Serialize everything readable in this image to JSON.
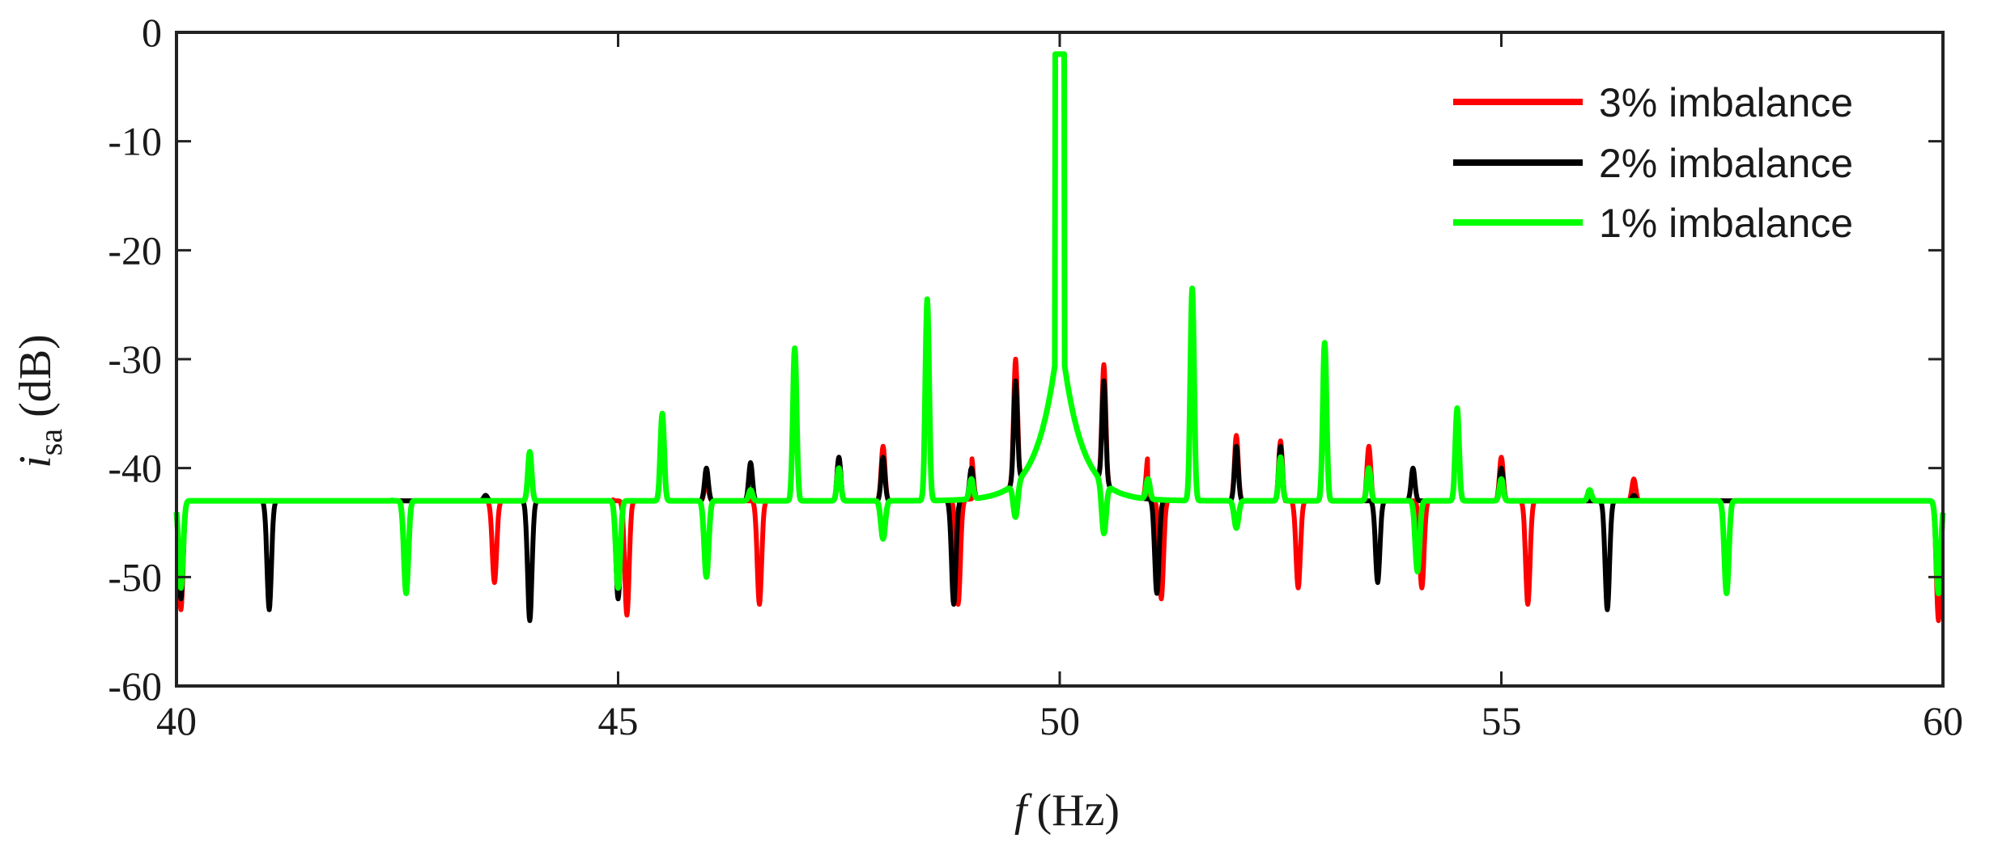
{
  "chart_data": {
    "type": "line",
    "xlabel_main": "f",
    "xlabel_unit": "(Hz)",
    "ylabel_main": "i",
    "ylabel_sub": "sa",
    "ylabel_unit": "(dB)",
    "xlim": [
      40,
      60
    ],
    "ylim": [
      -60,
      0
    ],
    "x_ticks": [
      40,
      45,
      50,
      55,
      60
    ],
    "y_ticks": [
      0,
      -10,
      -20,
      -30,
      -40,
      -50,
      -60
    ],
    "x_tick_labels": [
      "40",
      "45",
      "50",
      "55",
      "60"
    ],
    "y_tick_labels": [
      "0",
      "-10",
      "-20",
      "-30",
      "-40",
      "-50",
      "-60"
    ],
    "legend_position": "top-right",
    "fundamental": {
      "x": 50,
      "y": -2
    },
    "series": [
      {
        "name": "3% imbalance",
        "color": "#ff0000",
        "spikes": [
          [
            40.5,
            -45
          ],
          [
            41.0,
            -44
          ],
          [
            41.5,
            -45
          ],
          [
            42.0,
            -43
          ],
          [
            42.5,
            -43
          ],
          [
            43.0,
            -46
          ],
          [
            43.5,
            -41
          ],
          [
            44.0,
            -38.5
          ],
          [
            44.5,
            -44
          ],
          [
            45.0,
            -40
          ],
          [
            45.5,
            -35
          ],
          [
            46.0,
            -41
          ],
          [
            46.5,
            -38.5
          ],
          [
            47.0,
            -29
          ],
          [
            47.5,
            -39
          ],
          [
            48.0,
            -38
          ],
          [
            48.5,
            -24.5
          ],
          [
            49.0,
            -39
          ],
          [
            49.5,
            -30
          ],
          [
            50.5,
            -30.5
          ],
          [
            51.0,
            -39
          ],
          [
            51.5,
            -23.5
          ],
          [
            52.0,
            -37
          ],
          [
            52.5,
            -37.5
          ],
          [
            53.0,
            -28.5
          ],
          [
            53.5,
            -38
          ],
          [
            54.0,
            -39
          ],
          [
            54.5,
            -34.5
          ],
          [
            55.0,
            -39
          ],
          [
            55.5,
            -43.5
          ],
          [
            56.0,
            -43
          ],
          [
            56.5,
            -41
          ],
          [
            57.0,
            -45
          ],
          [
            57.5,
            -44
          ],
          [
            58.0,
            -43
          ],
          [
            58.5,
            -44
          ],
          [
            59.0,
            -44
          ],
          [
            59.5,
            -44
          ]
        ],
        "dips": [
          [
            40.05,
            -53
          ],
          [
            43.6,
            -50.5
          ],
          [
            45.1,
            -53.5
          ],
          [
            46.6,
            -52.5
          ],
          [
            48.85,
            -52.5
          ],
          [
            51.15,
            -52
          ],
          [
            52.7,
            -51
          ],
          [
            54.1,
            -51
          ],
          [
            55.3,
            -52.5
          ],
          [
            59.95,
            -54
          ]
        ]
      },
      {
        "name": "2% imbalance",
        "color": "#000000",
        "spikes": [
          [
            40.5,
            -44
          ],
          [
            41.0,
            -45
          ],
          [
            41.5,
            -44.5
          ],
          [
            42.0,
            -44
          ],
          [
            42.5,
            -44.5
          ],
          [
            43.0,
            -45.5
          ],
          [
            43.5,
            -42.5
          ],
          [
            44.0,
            -38.5
          ],
          [
            44.5,
            -43.5
          ],
          [
            45.0,
            -39.5
          ],
          [
            45.5,
            -35
          ],
          [
            46.0,
            -40
          ],
          [
            46.5,
            -39.5
          ],
          [
            47.0,
            -29
          ],
          [
            47.5,
            -39
          ],
          [
            48.0,
            -39
          ],
          [
            48.5,
            -24.5
          ],
          [
            49.0,
            -40
          ],
          [
            49.5,
            -32
          ],
          [
            50.5,
            -32
          ],
          [
            51.0,
            -40
          ],
          [
            51.5,
            -23.5
          ],
          [
            52.0,
            -38
          ],
          [
            52.5,
            -38
          ],
          [
            53.0,
            -28.5
          ],
          [
            53.5,
            -38.5
          ],
          [
            54.0,
            -40
          ],
          [
            54.5,
            -34.5
          ],
          [
            55.0,
            -40
          ],
          [
            55.5,
            -43.5
          ],
          [
            56.0,
            -43
          ],
          [
            56.5,
            -42.5
          ],
          [
            57.0,
            -45
          ],
          [
            57.5,
            -45
          ],
          [
            58.0,
            -44
          ],
          [
            58.5,
            -44.5
          ],
          [
            59.0,
            -44.5
          ],
          [
            59.5,
            -43.5
          ]
        ],
        "dips": [
          [
            40.05,
            -52
          ],
          [
            41.05,
            -53
          ],
          [
            44.0,
            -54
          ],
          [
            45.0,
            -52
          ],
          [
            48.8,
            -52.5
          ],
          [
            51.1,
            -51.5
          ],
          [
            53.6,
            -50.5
          ],
          [
            56.2,
            -53
          ],
          [
            59.95,
            -51.5
          ]
        ]
      },
      {
        "name": "1% imbalance",
        "color": "#00ff00",
        "spikes": [
          [
            40.5,
            -45.5
          ],
          [
            41.0,
            -43.5
          ],
          [
            41.5,
            -46
          ],
          [
            42.0,
            -45.5
          ],
          [
            42.5,
            -41.5
          ],
          [
            43.0,
            -48
          ],
          [
            43.5,
            -45.5
          ],
          [
            44.0,
            -38.5
          ],
          [
            44.5,
            -45.5
          ],
          [
            45.0,
            -44
          ],
          [
            45.5,
            -35
          ],
          [
            46.0,
            -43
          ],
          [
            46.5,
            -42
          ],
          [
            47.0,
            -29
          ],
          [
            47.5,
            -40
          ],
          [
            48.0,
            -40
          ],
          [
            48.5,
            -24.5
          ],
          [
            49.0,
            -41
          ],
          [
            49.5,
            -35.5
          ],
          [
            50.5,
            -35.5
          ],
          [
            51.0,
            -41
          ],
          [
            51.5,
            -23.5
          ],
          [
            52.0,
            -39
          ],
          [
            52.5,
            -39
          ],
          [
            53.0,
            -28.5
          ],
          [
            53.5,
            -40
          ],
          [
            54.0,
            -41
          ],
          [
            54.5,
            -34.5
          ],
          [
            55.0,
            -41
          ],
          [
            55.5,
            -44
          ],
          [
            56.0,
            -42
          ],
          [
            56.5,
            -44
          ],
          [
            57.0,
            -47
          ],
          [
            57.5,
            -41
          ],
          [
            58.0,
            -46
          ],
          [
            58.5,
            -45
          ],
          [
            59.0,
            -43
          ],
          [
            59.5,
            -45.5
          ]
        ],
        "dips": [
          [
            40.05,
            -51
          ],
          [
            42.6,
            -51.5
          ],
          [
            45.0,
            -51
          ],
          [
            46.0,
            -50
          ],
          [
            48.0,
            -46.5
          ],
          [
            49.5,
            -44.5
          ],
          [
            50.5,
            -46
          ],
          [
            52.0,
            -45.5
          ],
          [
            54.05,
            -49.5
          ],
          [
            57.55,
            -51.5
          ],
          [
            59.95,
            -51.5
          ]
        ]
      }
    ]
  }
}
